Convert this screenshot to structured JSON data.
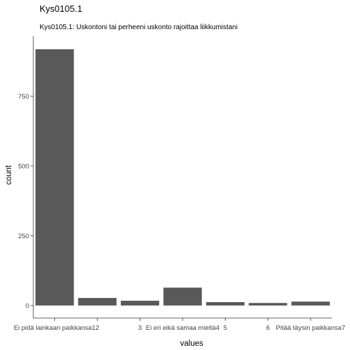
{
  "chart_data": {
    "type": "bar",
    "title": "Kys0105.1",
    "subtitle": "Kys0105.1: Uskontoni tai perheeni uskonto rajoittaa liikkumistani",
    "xlabel": "values",
    "ylabel": "count",
    "categories": [
      "1",
      "2",
      "3",
      "4",
      "5",
      "6",
      "7"
    ],
    "values": [
      918,
      27,
      17,
      64,
      12,
      9,
      14
    ],
    "x_tick_labels": [
      "Ei pidä lainkaan paikkansa1",
      "2",
      "3",
      "Ei eri eikä samaa mieltä4",
      "5",
      "6",
      "Pitää täysin paikkansa7"
    ],
    "y_ticks": [
      0,
      250,
      500,
      750
    ],
    "ylim": [
      -45,
      965
    ],
    "bar_color": "#595959",
    "grid": false
  }
}
